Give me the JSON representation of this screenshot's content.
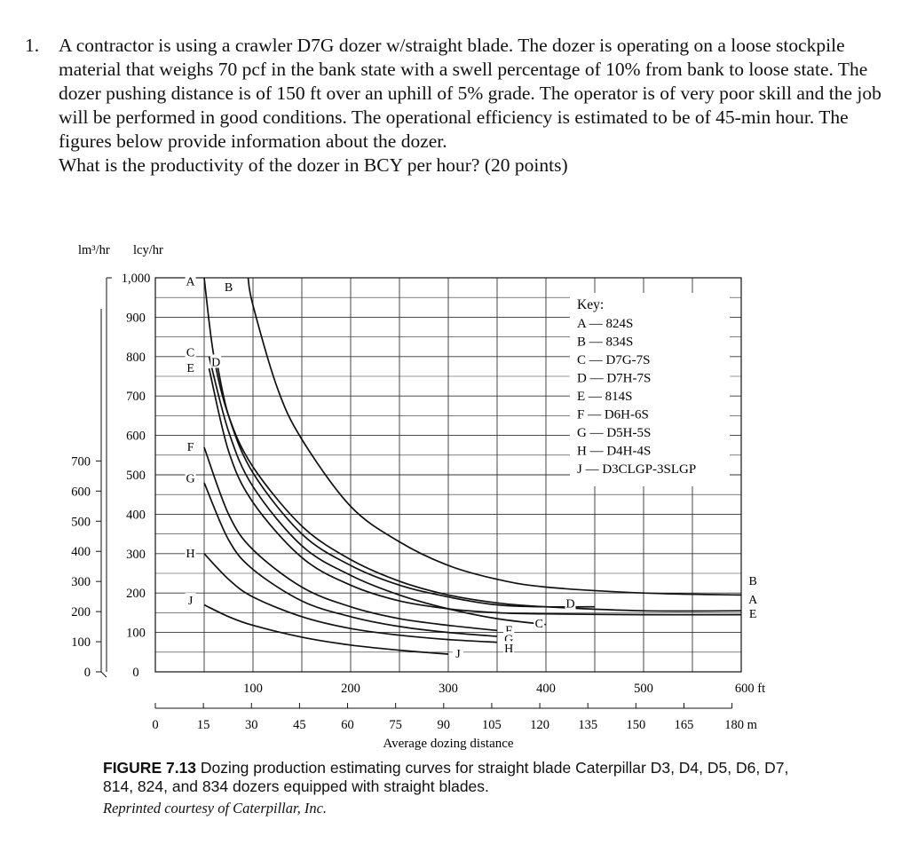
{
  "question": {
    "number": "1.",
    "text": "A contractor is using a crawler D7G dozer w/straight blade. The dozer is operating on a loose stockpile material that weighs 70 pcf in the bank state with a swell percentage of 10% from bank to loose state. The dozer pushing distance is of 150 ft over an uphill of 5% grade. The operator is of very poor skill and the job will be performed in good conditions. The operational efficiency is estimated to be of 45-min hour. The figures below provide information about the dozer.",
    "prompt": "What is the productivity of the dozer in BCY per hour? (20 points)"
  },
  "chart_data": {
    "type": "line",
    "units": {
      "left_outer": "lm³/hr",
      "left_inner": "lcy/hr",
      "x_top_unit": "ft",
      "x_bottom_unit": "m"
    },
    "xlabel": "Average dozing distance",
    "x_range_ft": [
      0,
      600
    ],
    "y_range_lcy": [
      0,
      1000
    ],
    "x_ticks_ft": [
      "100",
      "200",
      "300",
      "400",
      "500",
      "600 ft"
    ],
    "x_ticks_m": [
      "0",
      "15",
      "30",
      "45",
      "60",
      "75",
      "90",
      "105",
      "120",
      "135",
      "150",
      "165",
      "180 m"
    ],
    "y_ticks_lcy": [
      "0",
      "100",
      "200",
      "300",
      "400",
      "500",
      "600",
      "700",
      "800",
      "900",
      "1,000"
    ],
    "y_ticks_lm3": [
      "0",
      "100",
      "200",
      "300",
      "400",
      "500",
      "600",
      "700"
    ],
    "key_title": "Key:",
    "key": [
      {
        "id": "A",
        "model": "824S"
      },
      {
        "id": "B",
        "model": "834S"
      },
      {
        "id": "C",
        "model": "D7G-7S"
      },
      {
        "id": "D",
        "model": "D7H-7S"
      },
      {
        "id": "E",
        "model": "814S"
      },
      {
        "id": "F",
        "model": "D6H-6S"
      },
      {
        "id": "G",
        "model": "D5H-5S"
      },
      {
        "id": "H",
        "model": "D4H-4S"
      },
      {
        "id": "J",
        "model": "D3CLGP-3SLGP"
      }
    ],
    "series": [
      {
        "name": "A",
        "x_ft": [
          50,
          60,
          75,
          100,
          150,
          200,
          250,
          300,
          350,
          400,
          500,
          600
        ],
        "y_lcy": [
          1000,
          800,
          650,
          520,
          370,
          285,
          230,
          195,
          175,
          165,
          155,
          155
        ]
      },
      {
        "name": "B",
        "x_ft": [
          95,
          100,
          125,
          150,
          200,
          250,
          300,
          350,
          400,
          500,
          600
        ],
        "y_lcy": [
          1000,
          930,
          720,
          590,
          420,
          330,
          270,
          235,
          215,
          200,
          195
        ]
      },
      {
        "name": "C",
        "x_ft": [
          55,
          75,
          100,
          150,
          200,
          250,
          300,
          350,
          400
        ],
        "y_lcy": [
          800,
          610,
          470,
          320,
          245,
          195,
          160,
          135,
          120
        ]
      },
      {
        "name": "D",
        "x_ft": [
          62,
          75,
          100,
          150,
          200,
          250,
          300,
          350,
          400,
          450
        ],
        "y_lcy": [
          800,
          650,
          505,
          350,
          270,
          220,
          190,
          170,
          165,
          165
        ]
      },
      {
        "name": "E",
        "x_ft": [
          55,
          75,
          100,
          150,
          200,
          250,
          300,
          350,
          400,
          500,
          600
        ],
        "y_lcy": [
          770,
          560,
          430,
          290,
          220,
          180,
          160,
          150,
          147,
          145,
          145
        ]
      },
      {
        "name": "F",
        "x_ft": [
          50,
          75,
          100,
          150,
          200,
          250,
          300,
          350
        ],
        "y_lcy": [
          570,
          400,
          310,
          215,
          165,
          135,
          118,
          105
        ]
      },
      {
        "name": "G",
        "x_ft": [
          50,
          75,
          100,
          150,
          200,
          250,
          300,
          350
        ],
        "y_lcy": [
          480,
          335,
          260,
          180,
          140,
          115,
          100,
          90
        ]
      },
      {
        "name": "H",
        "x_ft": [
          50,
          75,
          100,
          150,
          200,
          250,
          300,
          350
        ],
        "y_lcy": [
          300,
          235,
          190,
          140,
          110,
          93,
          82,
          75
        ]
      },
      {
        "name": "J",
        "x_ft": [
          50,
          75,
          100,
          150,
          200,
          250,
          300
        ],
        "y_lcy": [
          170,
          140,
          118,
          88,
          68,
          55,
          45
        ]
      }
    ],
    "curve_labels": [
      {
        "id": "A",
        "x_ft": 36,
        "y_lcy": 990
      },
      {
        "id": "B",
        "x_ft": 75,
        "y_lcy": 975
      },
      {
        "id": "C",
        "x_ft": 36,
        "y_lcy": 810
      },
      {
        "id": "E",
        "x_ft": 36,
        "y_lcy": 770
      },
      {
        "id": "D",
        "x_ft": 62,
        "y_lcy": 785
      },
      {
        "id": "F",
        "x_ft": 36,
        "y_lcy": 570
      },
      {
        "id": "G",
        "x_ft": 36,
        "y_lcy": 490
      },
      {
        "id": "H",
        "x_ft": 36,
        "y_lcy": 300
      },
      {
        "id": "J",
        "x_ft": 36,
        "y_lcy": 180
      },
      {
        "id": "J",
        "x_ft": 310,
        "y_lcy": 45
      },
      {
        "id": "F",
        "x_ft": 362,
        "y_lcy": 105
      },
      {
        "id": "G",
        "x_ft": 362,
        "y_lcy": 82
      },
      {
        "id": "H",
        "x_ft": 362,
        "y_lcy": 58
      },
      {
        "id": "C",
        "x_ft": 393,
        "y_lcy": 122
      },
      {
        "id": "D",
        "x_ft": 425,
        "y_lcy": 172
      },
      {
        "id": "B",
        "x_ft": 612,
        "y_lcy": 230
      },
      {
        "id": "A",
        "x_ft": 612,
        "y_lcy": 182
      },
      {
        "id": "E",
        "x_ft": 612,
        "y_lcy": 146
      }
    ]
  },
  "caption": {
    "figure": "FIGURE 7.13",
    "text": "Dozing production estimating curves for straight blade Caterpillar D3, D4, D5, D6, D7, 814, 824, and 834 dozers equipped with straight blades.",
    "credit": "Reprinted courtesy of Caterpillar, Inc."
  }
}
